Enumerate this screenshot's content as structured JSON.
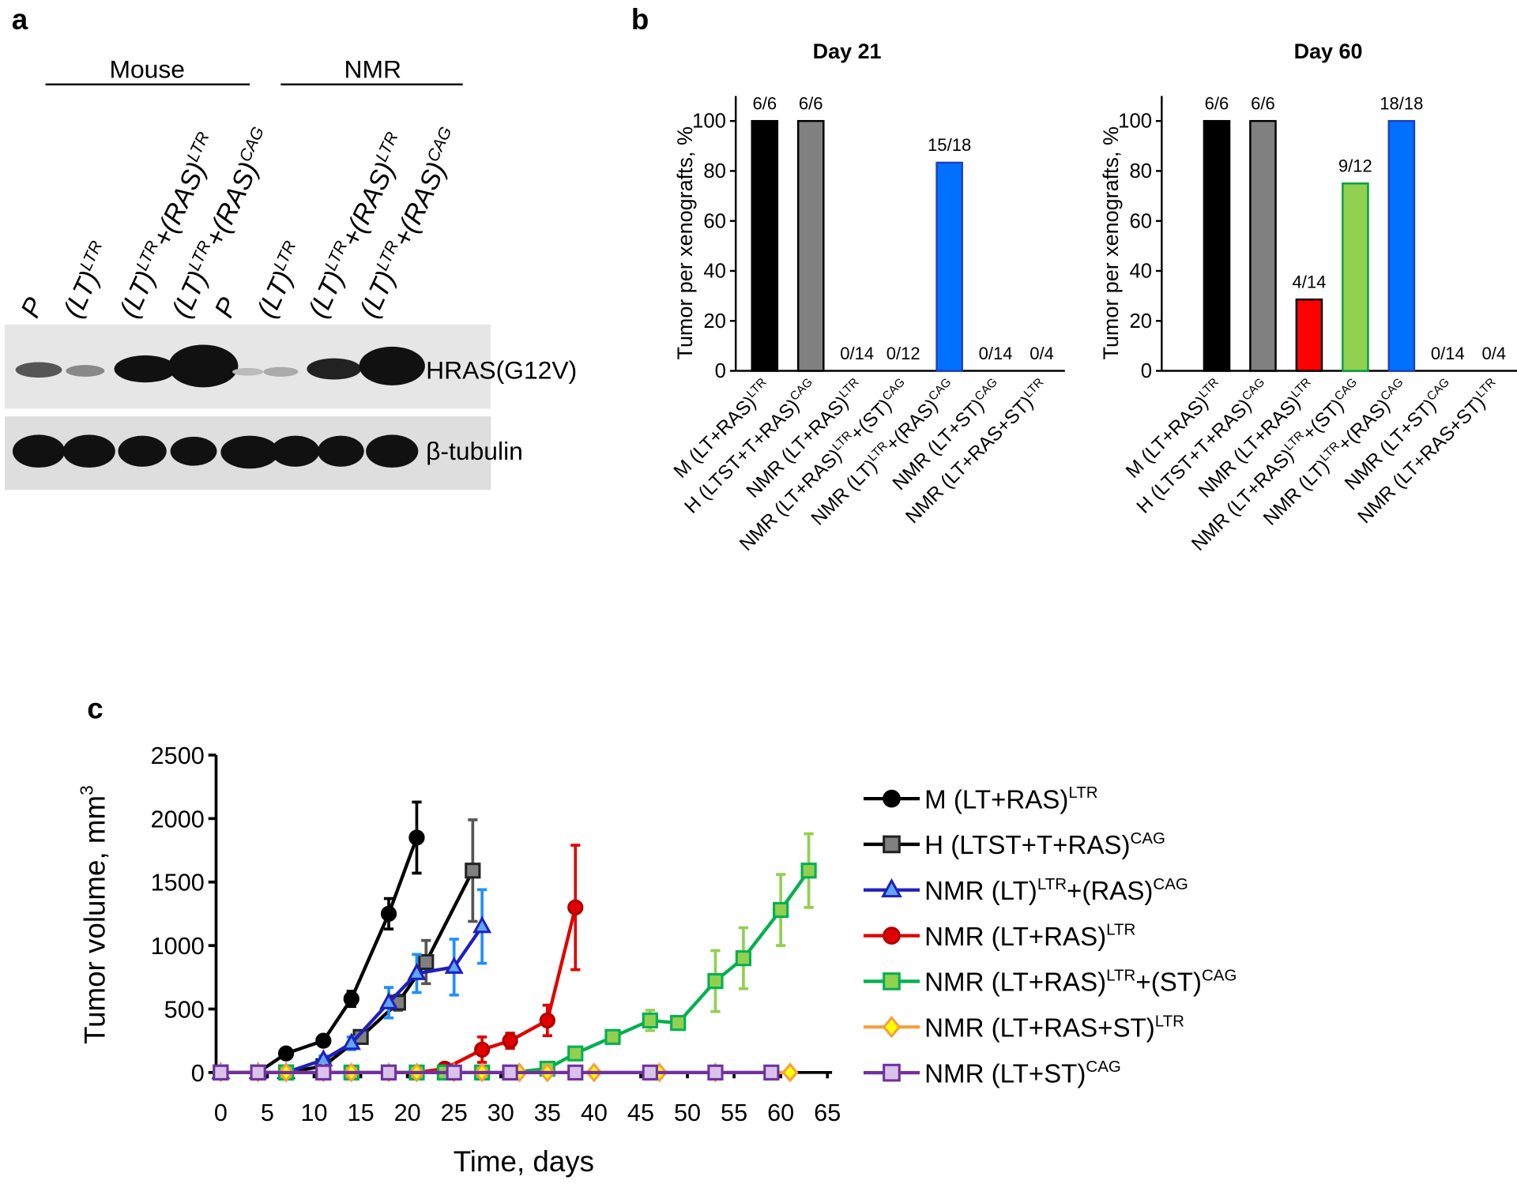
{
  "panels": [
    "a",
    "b",
    "c"
  ],
  "blot": {
    "groups": [
      "Mouse",
      "NMR"
    ],
    "lanes": [
      [
        {
          "text": "P"
        }
      ],
      [
        {
          "text": "(LT)",
          "sup": "LTR"
        }
      ],
      [
        {
          "text": "(LT)",
          "sup": "LTR"
        },
        {
          "text": "+(RAS)",
          "sup": "LTR"
        }
      ],
      [
        {
          "text": "(LT)",
          "sup": "LTR"
        },
        {
          "text": "+(RAS)",
          "sup": "CAG"
        }
      ],
      [
        {
          "text": "P"
        }
      ],
      [
        {
          "text": "(LT)",
          "sup": "LTR"
        }
      ],
      [
        {
          "text": "(LT)",
          "sup": "LTR"
        },
        {
          "text": "+(RAS)",
          "sup": "LTR"
        }
      ],
      [
        {
          "text": "(LT)",
          "sup": "LTR"
        },
        {
          "text": "+(RAS)",
          "sup": "CAG"
        }
      ]
    ],
    "rows": [
      "HRAS(G12V)",
      "β-tubulin"
    ]
  },
  "chart_data": [
    {
      "type": "bar",
      "title": "Day 21",
      "ylabel": "Tumor per xenografts, %",
      "categories": [
        [
          {
            "text": "M (LT+RAS)",
            "sup": "LTR"
          }
        ],
        [
          {
            "text": "H (LTST+T+RAS)",
            "sup": "CAG"
          }
        ],
        [
          {
            "text": "NMR (LT+RAS)",
            "sup": "LTR"
          }
        ],
        [
          {
            "text": "NMR (LT+RAS)",
            "sup": "LTR"
          },
          {
            "text": "+(ST)",
            "sup": "CAG"
          }
        ],
        [
          {
            "text": "NMR (LT)",
            "sup": "LTR"
          },
          {
            "text": "+(RAS)",
            "sup": "CAG"
          }
        ],
        [
          {
            "text": "NMR (LT+ST)",
            "sup": "CAG"
          }
        ],
        [
          {
            "text": "NMR (LT+RAS+ST)",
            "sup": "LTR"
          }
        ]
      ],
      "values": [
        100,
        100,
        0,
        0,
        83.33,
        0,
        0
      ],
      "value_labels": [
        "6/6",
        "6/6",
        "0/14",
        "0/12",
        "15/18",
        "0/14",
        "0/4"
      ],
      "colors": [
        "#000000",
        "#808080",
        "#ff0000",
        "#92d050",
        "#0070ff",
        "#7030a0",
        "#f4a040"
      ],
      "edgecolors": [
        "#000000",
        "#000000",
        "#000000",
        "#00a040",
        "#1f3fbf",
        "#000000",
        "#000000"
      ],
      "ylim": [
        0,
        110
      ],
      "yticks": [
        0,
        20,
        40,
        60,
        80,
        100
      ]
    },
    {
      "type": "bar",
      "title": "Day 60",
      "ylabel": "Tumor per xenografts, %",
      "categories": [
        [
          {
            "text": "M (LT+RAS)",
            "sup": "LTR"
          }
        ],
        [
          {
            "text": "H (LTST+T+RAS)",
            "sup": "CAG"
          }
        ],
        [
          {
            "text": "NMR (LT+RAS)",
            "sup": "LTR"
          }
        ],
        [
          {
            "text": "NMR (LT+RAS)",
            "sup": "LTR"
          },
          {
            "text": "+(ST)",
            "sup": "CAG"
          }
        ],
        [
          {
            "text": "NMR (LT)",
            "sup": "LTR"
          },
          {
            "text": "+(RAS)",
            "sup": "CAG"
          }
        ],
        [
          {
            "text": "NMR (LT+ST)",
            "sup": "CAG"
          }
        ],
        [
          {
            "text": "NMR (LT+RAS+ST)",
            "sup": "LTR"
          }
        ]
      ],
      "values": [
        100,
        100,
        28.57,
        75,
        100,
        0,
        0
      ],
      "value_labels": [
        "6/6",
        "6/6",
        "4/14",
        "9/12",
        "18/18",
        "0/14",
        "0/4"
      ],
      "colors": [
        "#000000",
        "#808080",
        "#ff0000",
        "#92d050",
        "#0070ff",
        "#7030a0",
        "#f4a040"
      ],
      "edgecolors": [
        "#000000",
        "#000000",
        "#000000",
        "#00a040",
        "#1f3fbf",
        "#000000",
        "#000000"
      ],
      "ylim": [
        0,
        110
      ],
      "yticks": [
        0,
        20,
        40,
        60,
        80,
        100
      ]
    },
    {
      "type": "line",
      "xlabel": "Time, days",
      "ylabel": [
        {
          "text": "Tumor volume, mm",
          "sup": "3"
        }
      ],
      "xlim": [
        -0.5,
        65.5
      ],
      "ylim": [
        0,
        2500
      ],
      "xticks": [
        0,
        5,
        10,
        15,
        20,
        25,
        30,
        35,
        40,
        45,
        50,
        55,
        60,
        65
      ],
      "yticks": [
        0,
        500,
        1000,
        1500,
        2000,
        2500
      ],
      "series": [
        {
          "name": [
            {
              "text": "M (LT+RAS)",
              "sup": "LTR"
            }
          ],
          "color": "#000000",
          "marker": "circle",
          "marker_fill": "#000000",
          "marker_edge": "#000000",
          "error_color": "#000000",
          "x": [
            0,
            4,
            7,
            11,
            14,
            18,
            21
          ],
          "values": [
            0,
            0,
            150,
            250,
            580,
            1250,
            1850
          ],
          "errors": [
            0,
            0,
            30,
            40,
            60,
            120,
            280
          ]
        },
        {
          "name": [
            {
              "text": "H (LTST+T+RAS)",
              "sup": "CAG"
            }
          ],
          "color": "#000000",
          "marker": "square",
          "marker_fill": "#808080",
          "marker_edge": "#222222",
          "error_color": "#555555",
          "x": [
            0,
            4,
            7,
            11,
            15,
            19,
            22,
            27
          ],
          "values": [
            0,
            0,
            0,
            50,
            280,
            550,
            870,
            1590
          ],
          "errors": [
            0,
            0,
            0,
            20,
            40,
            60,
            170,
            400
          ]
        },
        {
          "name": [
            {
              "text": "NMR (LT)",
              "sup": "LTR"
            },
            {
              "text": "+(RAS)",
              "sup": "CAG"
            }
          ],
          "color": "#1f1fbf",
          "marker": "triangle",
          "marker_fill": "#5fa8ff",
          "marker_edge": "#1f1fbf",
          "error_color": "#1e90ff",
          "x": [
            0,
            4,
            7,
            11,
            14,
            18,
            21,
            25,
            28
          ],
          "values": [
            0,
            0,
            0,
            100,
            230,
            550,
            780,
            830,
            1150
          ],
          "errors": [
            0,
            0,
            0,
            30,
            50,
            120,
            150,
            220,
            290
          ]
        },
        {
          "name": [
            {
              "text": "NMR (LT+RAS)",
              "sup": "LTR"
            }
          ],
          "color": "#e00000",
          "marker": "circle",
          "marker_fill": "#e00000",
          "marker_edge": "#b00000",
          "error_color": "#e00000",
          "x": [
            0,
            4,
            7,
            11,
            14,
            18,
            21,
            24,
            28,
            31,
            35,
            38
          ],
          "values": [
            0,
            0,
            0,
            0,
            0,
            0,
            0,
            30,
            180,
            250,
            410,
            1300
          ],
          "errors": [
            0,
            0,
            0,
            0,
            0,
            0,
            0,
            10,
            100,
            60,
            120,
            490
          ]
        },
        {
          "name": [
            {
              "text": "NMR (LT+RAS)",
              "sup": "LTR"
            },
            {
              "text": "+(ST)",
              "sup": "CAG"
            }
          ],
          "color": "#00b050",
          "marker": "square",
          "marker_fill": "#92d050",
          "marker_edge": "#00b050",
          "error_color": "#92d050",
          "x": [
            0,
            4,
            7,
            11,
            14,
            18,
            21,
            24,
            28,
            31,
            35,
            38,
            42,
            46,
            49,
            53,
            56,
            60,
            63
          ],
          "values": [
            0,
            0,
            0,
            0,
            0,
            0,
            0,
            0,
            0,
            0,
            30,
            150,
            280,
            410,
            390,
            720,
            900,
            1280,
            1590
          ],
          "errors": [
            0,
            0,
            0,
            0,
            0,
            0,
            0,
            0,
            0,
            0,
            10,
            20,
            40,
            80,
            40,
            240,
            240,
            280,
            290
          ]
        },
        {
          "name": [
            {
              "text": "NMR (LT+RAS+ST)",
              "sup": "LTR"
            }
          ],
          "color": "#f4a040",
          "marker": "diamond",
          "marker_fill": "#ffff00",
          "marker_edge": "#f4a040",
          "error_color": "#f4a040",
          "x": [
            0,
            4,
            7,
            11,
            14,
            18,
            21,
            25,
            28,
            32,
            35,
            40,
            47,
            53,
            61
          ],
          "values": [
            0,
            0,
            0,
            0,
            0,
            0,
            0,
            0,
            0,
            0,
            0,
            0,
            0,
            0,
            0
          ],
          "errors": [
            0,
            0,
            0,
            0,
            0,
            0,
            0,
            0,
            0,
            0,
            0,
            0,
            0,
            0,
            0
          ]
        },
        {
          "name": [
            {
              "text": "NMR (LT+ST)",
              "sup": "CAG"
            }
          ],
          "color": "#7030a0",
          "marker": "square",
          "marker_fill": "#d9c3ea",
          "marker_edge": "#7030a0",
          "error_color": "#7030a0",
          "x": [
            0,
            4,
            11,
            18,
            25,
            31,
            38,
            46,
            53,
            59
          ],
          "values": [
            0,
            0,
            0,
            0,
            0,
            0,
            0,
            0,
            0,
            0
          ],
          "errors": [
            0,
            0,
            0,
            0,
            0,
            0,
            0,
            0,
            0,
            0
          ]
        }
      ]
    }
  ]
}
